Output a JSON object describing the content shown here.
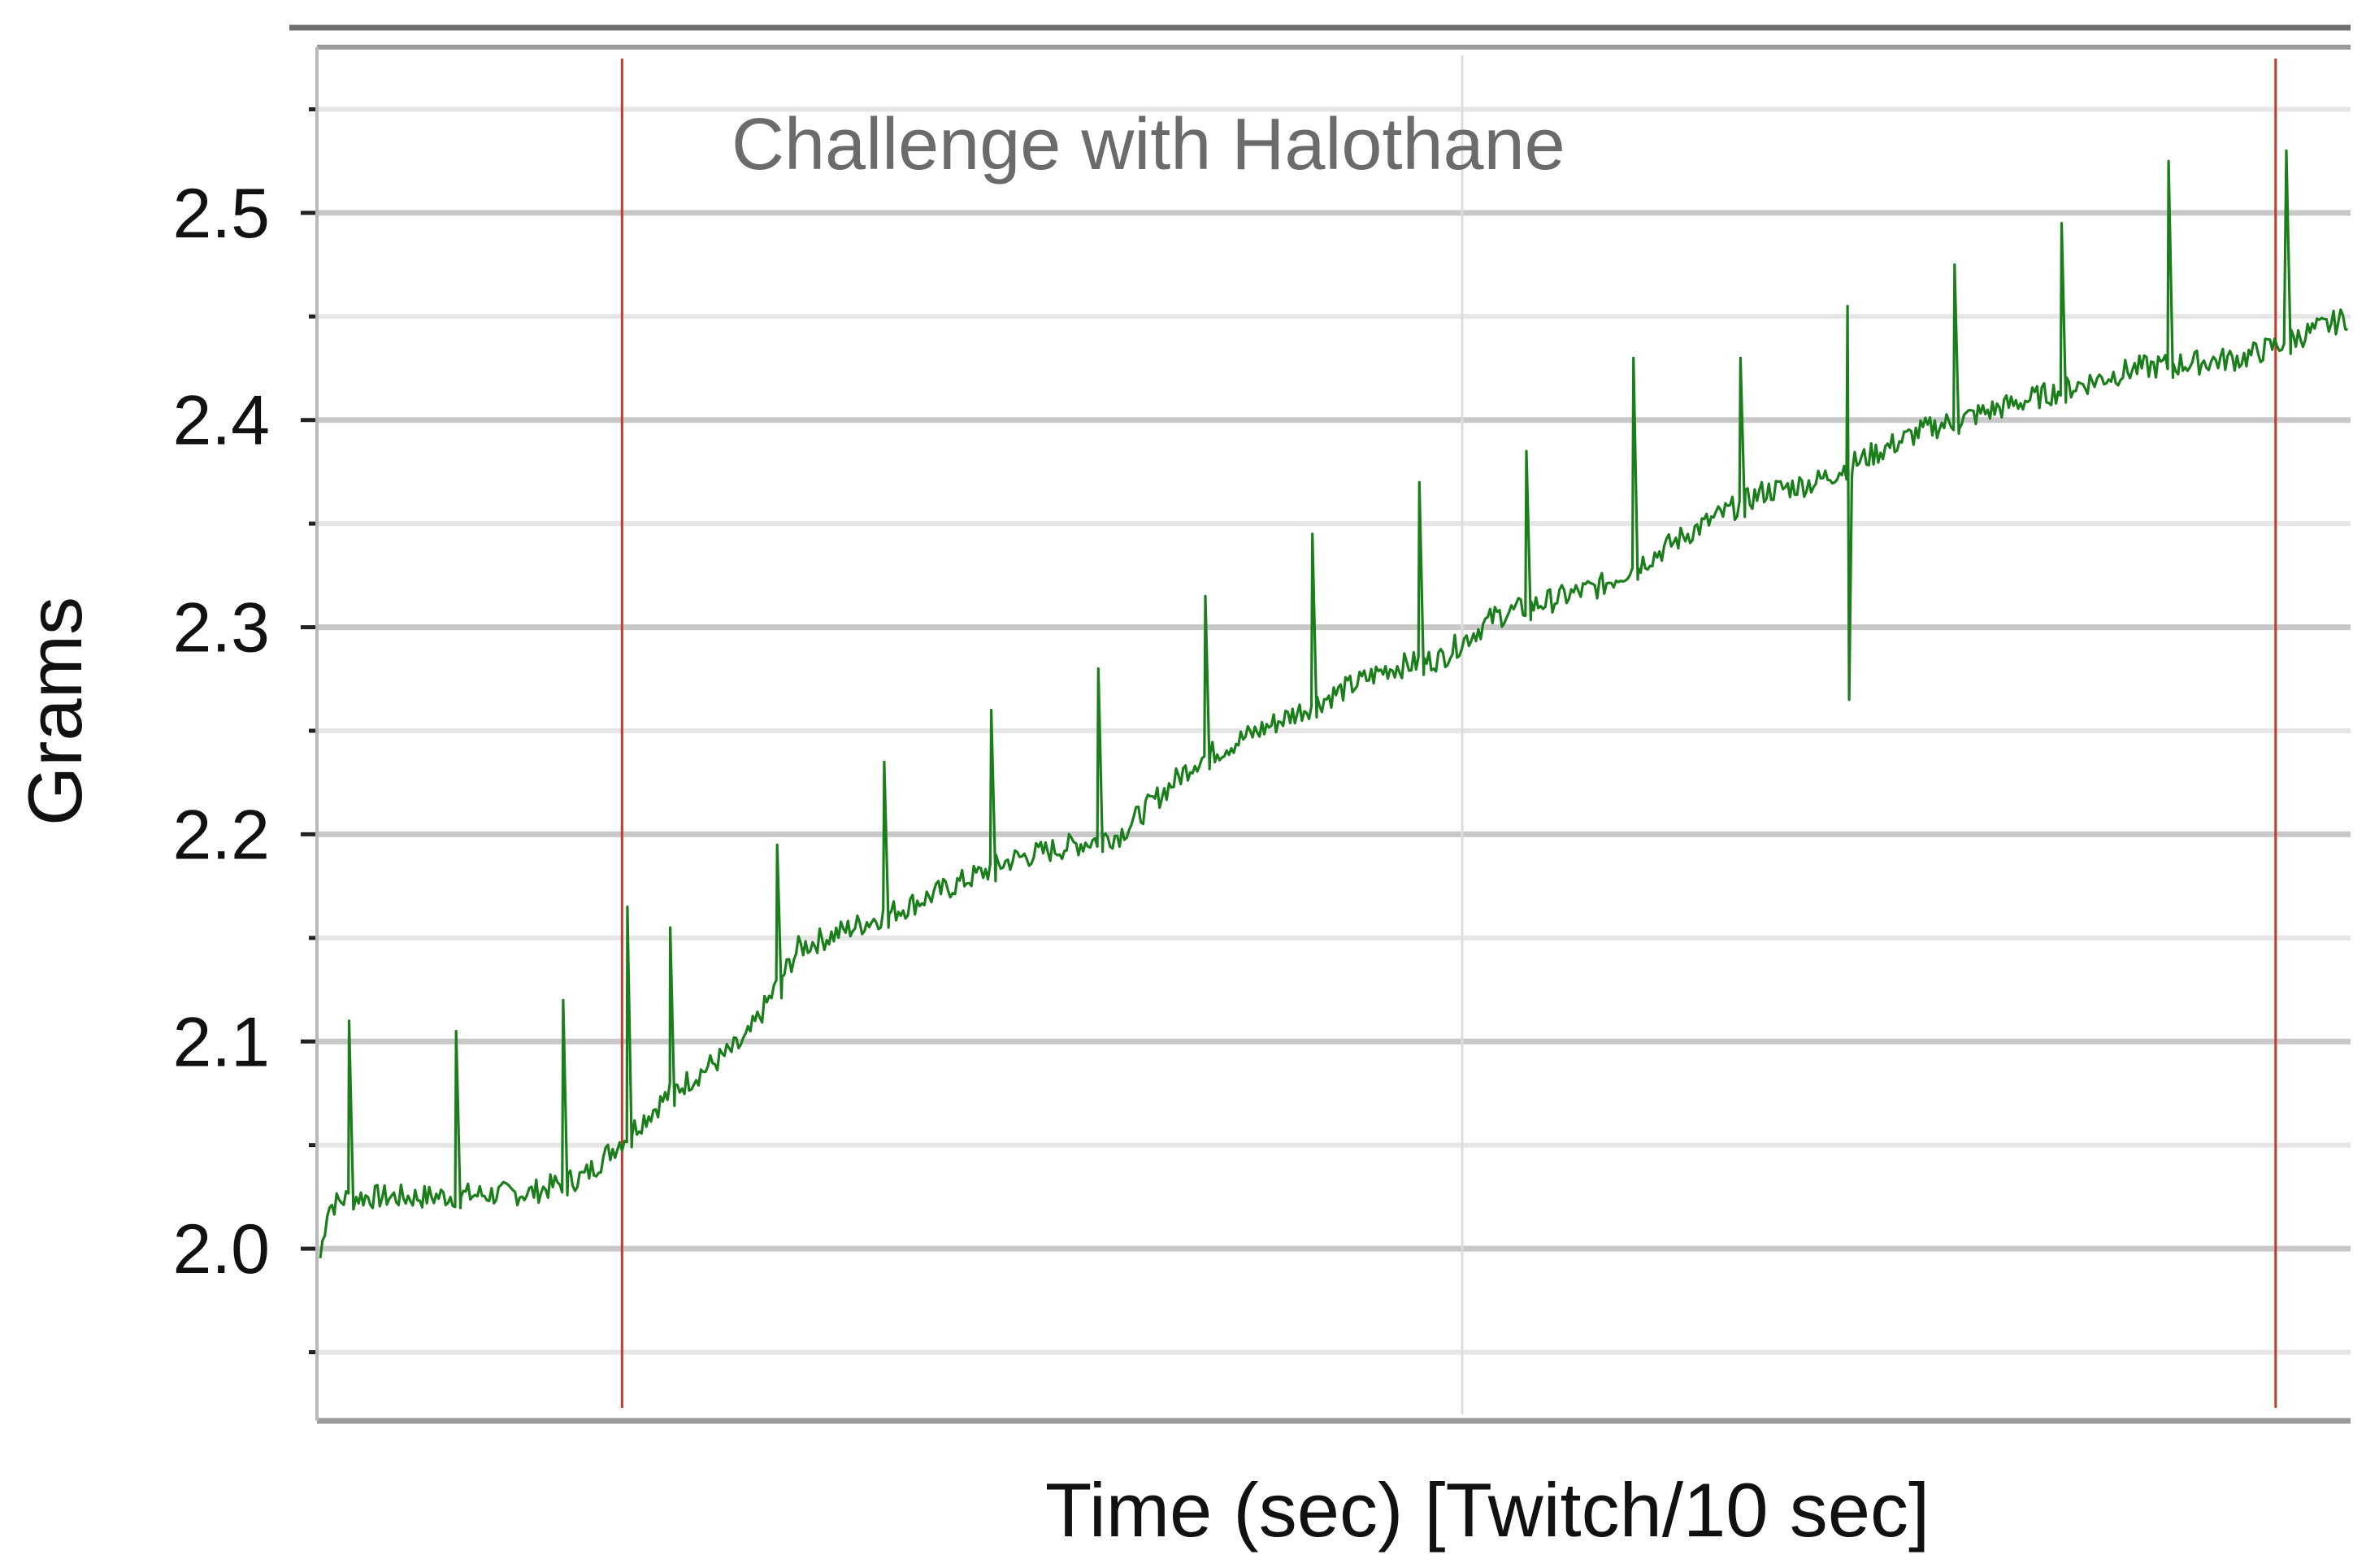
{
  "chart_data": {
    "type": "line",
    "title": "Challenge with Halothane",
    "xlabel": "Time (sec) [Twitch/10 sec]",
    "ylabel": "Grams",
    "ylim": [
      1.92,
      2.58
    ],
    "xlim": [
      0,
      190
    ],
    "y_ticks": [
      2.0,
      2.1,
      2.2,
      2.3,
      2.4,
      2.5
    ],
    "y_tick_labels": [
      "2.0",
      "2.1",
      "2.2",
      "2.3",
      "2.4",
      "2.5"
    ],
    "x_tick_labels": [],
    "grid": true,
    "legend": "none",
    "colors": {
      "trace": "#1a7f1a",
      "marker_line": "#c0392b",
      "grid_major": "#c8c8c8",
      "grid_minor": "#e6e6e6",
      "frame": "#6e6e6e"
    },
    "markers": [
      {
        "x": 28.5,
        "kind": "vertical-line"
      },
      {
        "x": 183,
        "kind": "vertical-line"
      }
    ],
    "baseline": {
      "x": [
        0,
        1,
        3,
        10,
        20,
        25,
        28,
        33,
        40,
        45,
        55,
        65,
        75,
        82,
        90,
        100,
        105,
        110,
        120,
        125,
        128,
        135,
        140,
        150,
        160,
        170,
        180,
        190
      ],
      "y": [
        1.985,
        2.02,
        2.025,
        2.025,
        2.027,
        2.035,
        2.05,
        2.075,
        2.1,
        2.145,
        2.165,
        2.188,
        2.2,
        2.235,
        2.255,
        2.28,
        2.285,
        2.305,
        2.32,
        2.335,
        2.345,
        2.365,
        2.37,
        2.395,
        2.41,
        2.425,
        2.43,
        2.45
      ]
    },
    "twitches": [
      {
        "x": 3,
        "peak": 2.11
      },
      {
        "x": 13,
        "peak": 2.105
      },
      {
        "x": 23,
        "peak": 2.12
      },
      {
        "x": 29,
        "peak": 2.165
      },
      {
        "x": 33,
        "peak": 2.155
      },
      {
        "x": 43,
        "peak": 2.195
      },
      {
        "x": 53,
        "peak": 2.235
      },
      {
        "x": 63,
        "peak": 2.26
      },
      {
        "x": 73,
        "peak": 2.28
      },
      {
        "x": 83,
        "peak": 2.315
      },
      {
        "x": 93,
        "peak": 2.345
      },
      {
        "x": 103,
        "peak": 2.37
      },
      {
        "x": 113,
        "peak": 2.385
      },
      {
        "x": 123,
        "peak": 2.43
      },
      {
        "x": 133,
        "peak": 2.43
      },
      {
        "x": 143,
        "peak": 2.455,
        "dip": 2.265
      },
      {
        "x": 153,
        "peak": 2.475
      },
      {
        "x": 163,
        "peak": 2.495
      },
      {
        "x": 173,
        "peak": 2.525
      },
      {
        "x": 184,
        "peak": 2.53
      }
    ]
  }
}
